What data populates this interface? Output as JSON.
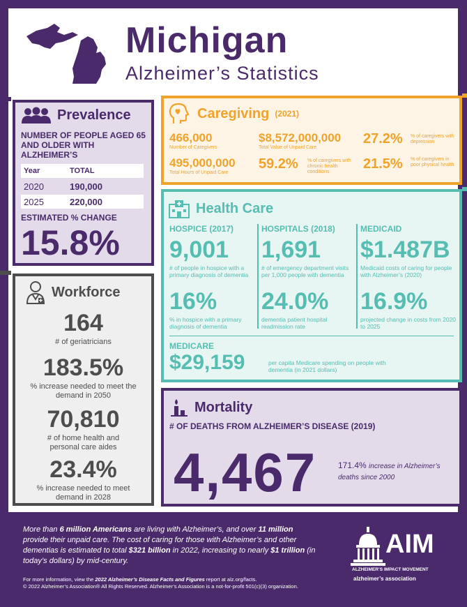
{
  "header": {
    "title": "Michigan",
    "subtitle": "Alzheimer’s Statistics"
  },
  "prevalence": {
    "title": "Prevalence",
    "label": "NUMBER OF PEOPLE AGED 65 AND OLDER WITH ALZHEIMER’S",
    "col_year": "Year",
    "col_total": "TOTAL",
    "rows": [
      {
        "year": "2020",
        "total": "190,000"
      },
      {
        "year": "2025",
        "total": "220,000"
      }
    ],
    "est_label": "ESTIMATED % CHANGE",
    "est_value": "15.8%"
  },
  "workforce": {
    "title": "Workforce",
    "items": [
      {
        "num": "164",
        "label": "# of geriatricians"
      },
      {
        "num": "183.5%",
        "label": "% increase needed to meet the demand in 2050"
      },
      {
        "num": "70,810",
        "label": "# of home health and personal care aides"
      },
      {
        "num": "23.4%",
        "label": "% increase needed to meet demand in 2028"
      }
    ]
  },
  "caregiving": {
    "title": "Caregiving",
    "year": "(2021)",
    "caregivers_num": "466,000",
    "caregivers_label": "Number of Caregivers",
    "value_num": "$8,572,000,000",
    "value_label": "Total Value of Unpaid Care",
    "depression_num": "27.2%",
    "depression_label": "% of caregivers with depression",
    "hours_num": "495,000,000",
    "hours_label": "Total Hours of Unpaid Care",
    "chronic_num": "59.2%",
    "chronic_label": "% of caregivers with chronic health conditions",
    "poor_num": "21.5%",
    "poor_label": "% of caregivers in poor physical health"
  },
  "health": {
    "title": "Health Care",
    "hospice_title": "HOSPICE (2017)",
    "hospice_num": "9,001",
    "hospice_label": "# of people in hospice with a primary diagnosis of dementia",
    "hospice_pct": "16%",
    "hospice_pct_label": "% in hospice with a primary diagnosis of dementia",
    "hosp_title": "HOSPITALS (2018)",
    "hosp_num": "1,691",
    "hosp_label": "# of emergency department visits per 1,000 people with dementia",
    "hosp_pct": "24.0%",
    "hosp_pct_label": "dementia patient hospital readmission rate",
    "medicaid_title": "MEDICAID",
    "medicaid_num": "$1.487B",
    "medicaid_label": "Medicaid costs of caring for people with Alzheimer’s (2020)",
    "medicaid_pct": "16.9%",
    "medicaid_pct_label": "projected change in costs from 2020 to 2025",
    "medicare_title": "MEDICARE",
    "medicare_num": "$29,159",
    "medicare_label": "per capita Medicare spending on people with dementia (in 2021 dollars)"
  },
  "mortality": {
    "title": "Mortality",
    "label": "# OF DEATHS FROM ALZHEIMER’S DISEASE (2019)",
    "num": "4,467",
    "pct": "171.4%",
    "pct_label": "increase in Alzheimer’s deaths since 2000"
  },
  "footer": {
    "t1": "More than ",
    "b1": "6 million Americans",
    "t2": " are living with Alzheimer’s, and over ",
    "b2": "11 million",
    "t3": " provide their unpaid care. The cost of caring for those with Alzheimer’s and other dementias is estimated to total ",
    "b3": "$321 billion",
    "t4": " in 2022, increasing to nearly ",
    "b4": "$1 trillion",
    "t5": " (in today’s dollars) by mid-century.",
    "small1_a": "For more information, view the ",
    "small1_b": "2022 Alzheimer’s Disease Facts and Figures",
    "small1_c": " report at alz.org/facts.",
    "small2": "© 2022 Alzheimer’s Association® All Rights Reserved. Alzheimer’s Association is a not-for-profit 501(c)(3) organization.",
    "aim": "AIM",
    "aim_sub": "ALZHEIMER’S IMPACT MOVEMENT",
    "assoc": "alzheimer’s association"
  },
  "colors": {
    "purple": "#4a2a6b",
    "orange": "#f0a32a",
    "teal": "#55bdb2",
    "gray": "#4d4d4d"
  },
  "icons": [
    "michigan-map-icon",
    "people-icon",
    "doctor-icon",
    "head-heart-icon",
    "hospital-icon",
    "candle-icon",
    "capitol-icon"
  ]
}
